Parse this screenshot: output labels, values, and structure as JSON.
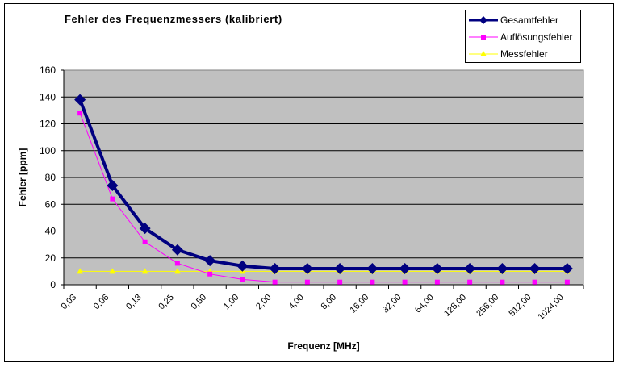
{
  "chart_data": {
    "type": "line",
    "title": "Fehler des Frequenzmessers (kalibriert)",
    "xlabel": "Frequenz [MHz]",
    "ylabel": "Fehler [ppm]",
    "ylim": [
      0,
      160
    ],
    "yticks": [
      0,
      20,
      40,
      60,
      80,
      100,
      120,
      140,
      160
    ],
    "grid": true,
    "legend_position": "top-right",
    "categories": [
      "0,03",
      "0,06",
      "0,13",
      "0,25",
      "0,50",
      "1,00",
      "2,00",
      "4,00",
      "8,00",
      "16,00",
      "32,00",
      "64,00",
      "128,00",
      "256,00",
      "512,00",
      "1024,00"
    ],
    "series": [
      {
        "name": "Gesamtfehler",
        "color": "#000080",
        "marker": "diamond",
        "values": [
          138,
          74,
          42,
          26,
          18,
          14,
          12,
          12,
          12,
          12,
          12,
          12,
          12,
          12,
          12,
          12
        ]
      },
      {
        "name": "Auflösungsfehler",
        "color": "#FF00FF",
        "marker": "square",
        "values": [
          128,
          64,
          32,
          16,
          8,
          4,
          2,
          2,
          2,
          2,
          2,
          2,
          2,
          2,
          2,
          2
        ]
      },
      {
        "name": "Messfehler",
        "color": "#FFFF00",
        "marker": "triangle",
        "values": [
          10,
          10,
          10,
          10,
          10,
          10,
          10,
          10,
          10,
          10,
          10,
          10,
          10,
          10,
          10,
          10
        ]
      }
    ],
    "plot_background": "#C0C0C0"
  },
  "legend": {
    "items": [
      {
        "label": "Gesamtfehler"
      },
      {
        "label": "Auflösungsfehler"
      },
      {
        "label": "Messfehler"
      }
    ]
  }
}
